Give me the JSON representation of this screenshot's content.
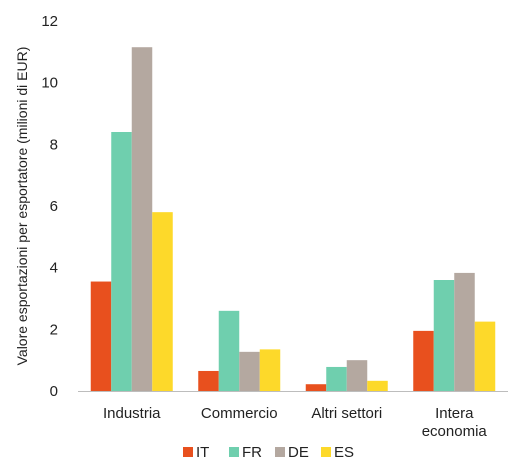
{
  "chart_data": {
    "type": "bar",
    "categories": [
      "Industria",
      "Commercio",
      "Altri settori",
      "Intera economia"
    ],
    "series": [
      {
        "name": "IT",
        "values": [
          3.55,
          0.65,
          0.22,
          1.95
        ],
        "color": "#e8501e"
      },
      {
        "name": "FR",
        "values": [
          8.4,
          2.6,
          0.78,
          3.6
        ],
        "color": "#6fcfae"
      },
      {
        "name": "DE",
        "values": [
          11.15,
          1.27,
          1.0,
          3.83
        ],
        "color": "#b4a8a0"
      },
      {
        "name": "ES",
        "values": [
          5.8,
          1.35,
          0.33,
          2.25
        ],
        "color": "#fdd92a"
      }
    ],
    "ylabel": "Valore esportazioni per esportatore (milioni di EUR)",
    "xlabel": "",
    "title": "",
    "ylim": [
      0,
      12
    ],
    "yticks": [
      0,
      2,
      4,
      6,
      8,
      10,
      12
    ],
    "grid": false,
    "legend_position": "bottom"
  }
}
